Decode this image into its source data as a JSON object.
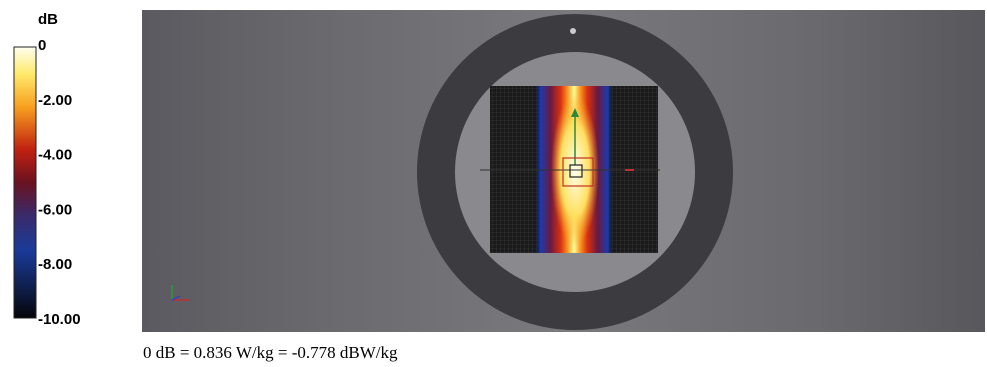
{
  "colorbar": {
    "unit": "dB",
    "ticks": [
      "0",
      "-2.00",
      "-4.00",
      "-6.00",
      "-8.00",
      "-10.00"
    ]
  },
  "caption": "0 dB = 0.836 W/kg = -0.778 dBW/kg"
}
